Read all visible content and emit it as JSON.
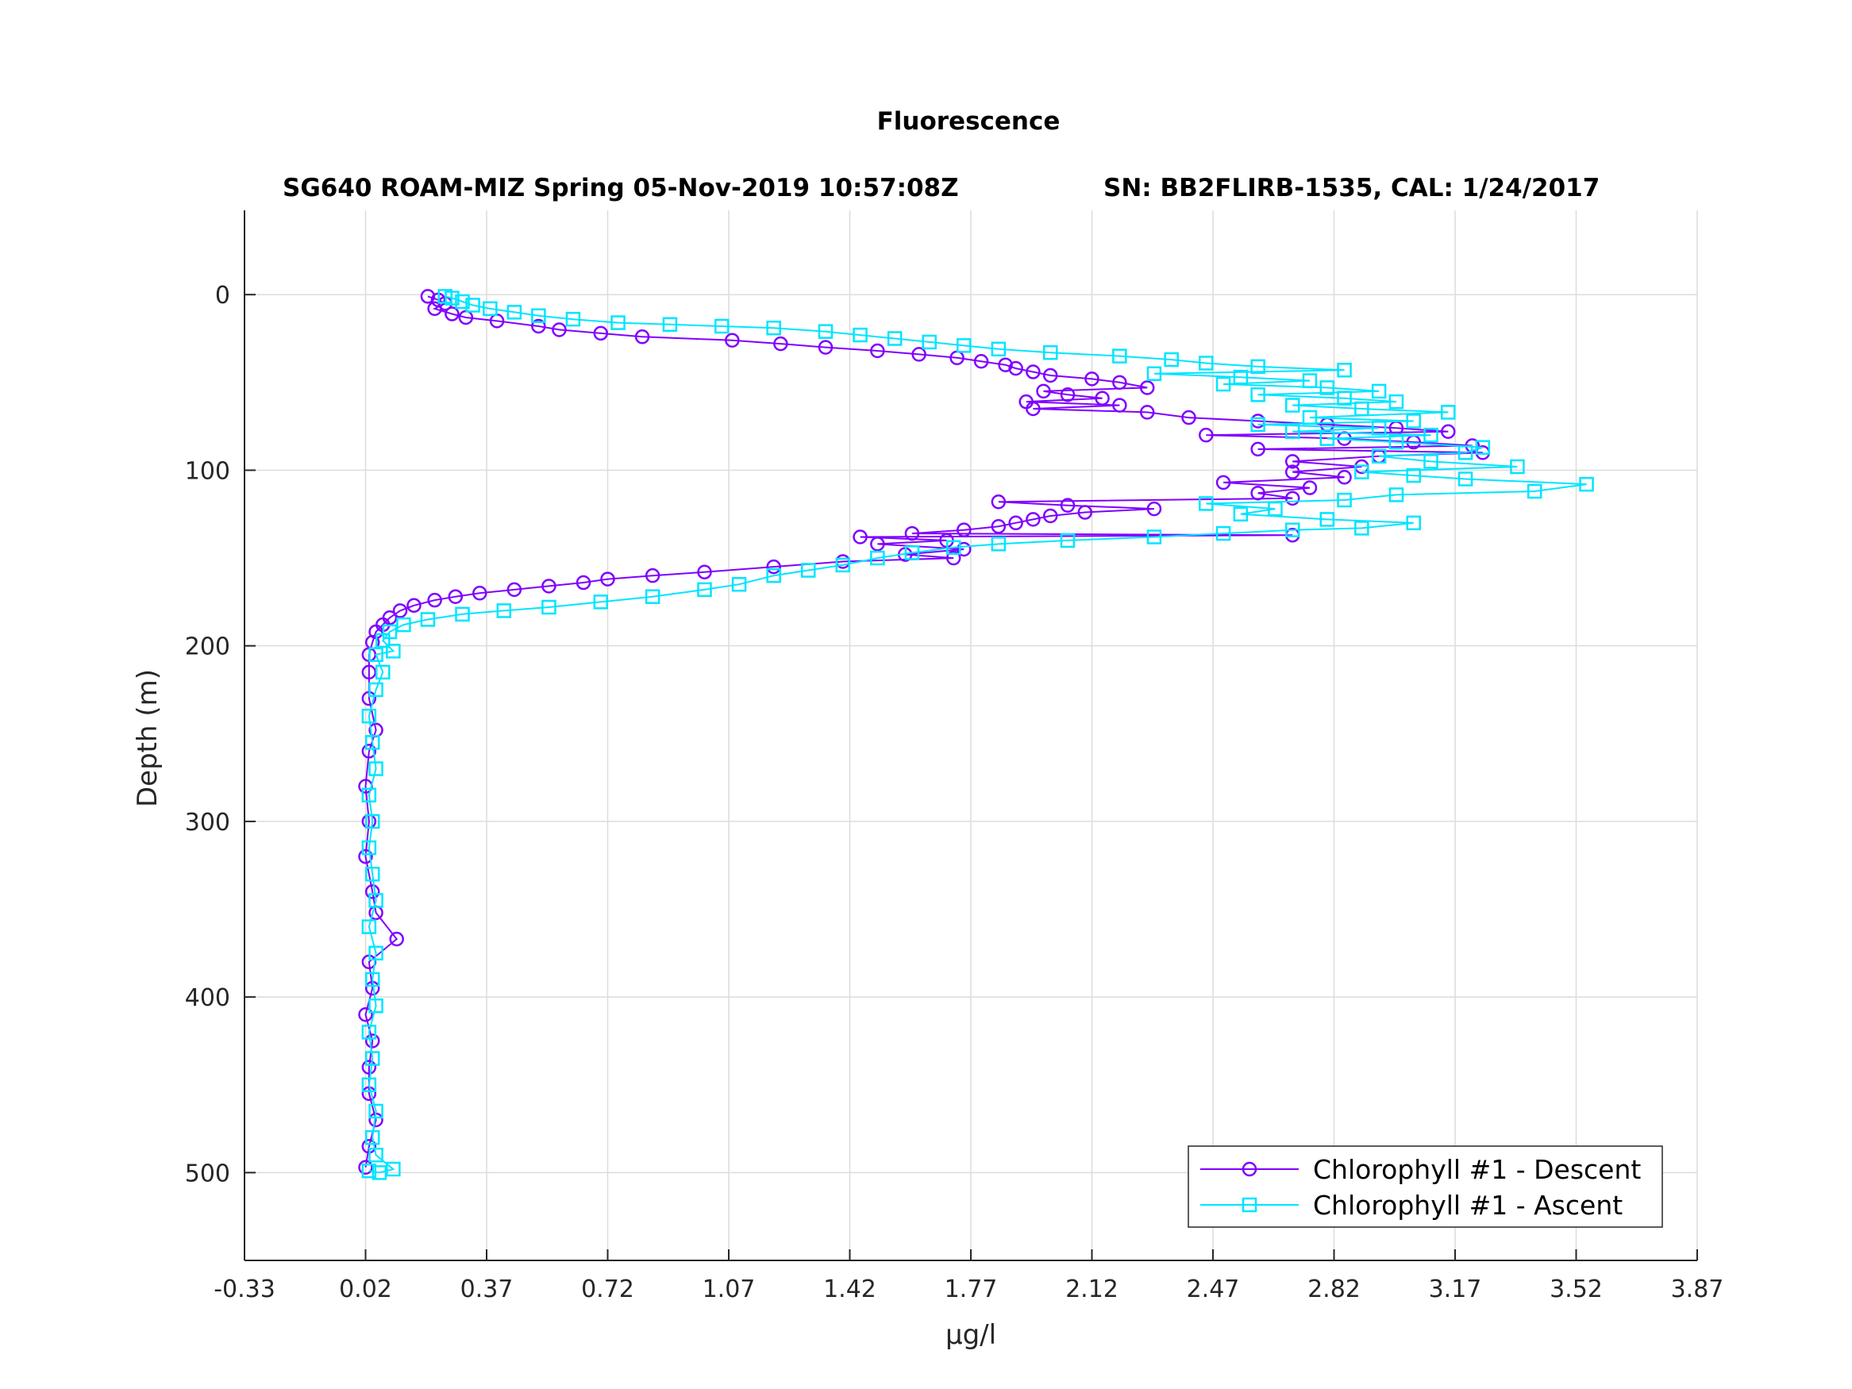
{
  "chart_data": {
    "type": "line",
    "title": "Fluorescence",
    "subtitle_left": "SG640 ROAM-MIZ Spring 05-Nov-2019 10:57:08Z",
    "subtitle_right": "SN: BB2FLIRB-1535, CAL: 1/24/2017",
    "xlabel": "μg/l",
    "ylabel": "Depth (m)",
    "xlim": [
      -0.33,
      3.87
    ],
    "ylim": [
      -48,
      550
    ],
    "y_reversed": true,
    "grid": true,
    "legend_position": "bottom-right",
    "xticks": [
      "-0.33",
      "0.02",
      "0.37",
      "0.72",
      "1.07",
      "1.42",
      "1.77",
      "2.12",
      "2.47",
      "2.82",
      "3.17",
      "3.52",
      "3.87"
    ],
    "yticks": [
      "0",
      "100",
      "200",
      "300",
      "400",
      "500"
    ],
    "series": [
      {
        "name": "Chlorophyll #1 - Descent",
        "color": "#8000ff",
        "marker": "circle",
        "points": [
          [
            0.2,
            1
          ],
          [
            0.23,
            3
          ],
          [
            0.25,
            5
          ],
          [
            0.22,
            8
          ],
          [
            0.27,
            11
          ],
          [
            0.31,
            13
          ],
          [
            0.4,
            15
          ],
          [
            0.52,
            18
          ],
          [
            0.58,
            20
          ],
          [
            0.7,
            22
          ],
          [
            0.82,
            24
          ],
          [
            1.08,
            26
          ],
          [
            1.22,
            28
          ],
          [
            1.35,
            30
          ],
          [
            1.5,
            32
          ],
          [
            1.62,
            34
          ],
          [
            1.73,
            36
          ],
          [
            1.8,
            38
          ],
          [
            1.87,
            40
          ],
          [
            1.9,
            42
          ],
          [
            1.95,
            44
          ],
          [
            2.0,
            46
          ],
          [
            2.12,
            48
          ],
          [
            2.2,
            50
          ],
          [
            2.28,
            53
          ],
          [
            1.98,
            55
          ],
          [
            2.05,
            57
          ],
          [
            2.15,
            59
          ],
          [
            1.93,
            61
          ],
          [
            2.2,
            63
          ],
          [
            1.95,
            65
          ],
          [
            2.28,
            67
          ],
          [
            2.4,
            70
          ],
          [
            2.6,
            72
          ],
          [
            2.8,
            74
          ],
          [
            3.0,
            76
          ],
          [
            3.15,
            78
          ],
          [
            2.45,
            80
          ],
          [
            2.85,
            82
          ],
          [
            3.05,
            84
          ],
          [
            3.22,
            86
          ],
          [
            2.6,
            88
          ],
          [
            3.25,
            90
          ],
          [
            2.95,
            92
          ],
          [
            2.7,
            95
          ],
          [
            2.9,
            98
          ],
          [
            2.7,
            101
          ],
          [
            2.85,
            104
          ],
          [
            2.5,
            107
          ],
          [
            2.75,
            110
          ],
          [
            2.6,
            113
          ],
          [
            2.7,
            116
          ],
          [
            1.85,
            118
          ],
          [
            2.05,
            120
          ],
          [
            2.3,
            122
          ],
          [
            2.1,
            124
          ],
          [
            2.0,
            126
          ],
          [
            1.95,
            128
          ],
          [
            1.9,
            130
          ],
          [
            1.85,
            132
          ],
          [
            1.75,
            134
          ],
          [
            1.6,
            136
          ],
          [
            2.7,
            137
          ],
          [
            1.45,
            138
          ],
          [
            1.7,
            140
          ],
          [
            1.5,
            142
          ],
          [
            1.75,
            145
          ],
          [
            1.58,
            148
          ],
          [
            1.72,
            150
          ],
          [
            1.4,
            152
          ],
          [
            1.2,
            155
          ],
          [
            1.0,
            158
          ],
          [
            0.85,
            160
          ],
          [
            0.72,
            162
          ],
          [
            0.65,
            164
          ],
          [
            0.55,
            166
          ],
          [
            0.45,
            168
          ],
          [
            0.35,
            170
          ],
          [
            0.28,
            172
          ],
          [
            0.22,
            174
          ],
          [
            0.16,
            177
          ],
          [
            0.12,
            180
          ],
          [
            0.09,
            184
          ],
          [
            0.07,
            188
          ],
          [
            0.05,
            192
          ],
          [
            0.04,
            198
          ],
          [
            0.03,
            205
          ],
          [
            0.03,
            215
          ],
          [
            0.03,
            230
          ],
          [
            0.05,
            248
          ],
          [
            0.03,
            260
          ],
          [
            0.02,
            280
          ],
          [
            0.03,
            300
          ],
          [
            0.02,
            320
          ],
          [
            0.04,
            340
          ],
          [
            0.05,
            352
          ],
          [
            0.11,
            367
          ],
          [
            0.03,
            380
          ],
          [
            0.04,
            395
          ],
          [
            0.02,
            410
          ],
          [
            0.04,
            425
          ],
          [
            0.03,
            440
          ],
          [
            0.03,
            455
          ],
          [
            0.05,
            470
          ],
          [
            0.03,
            485
          ],
          [
            0.02,
            497
          ]
        ]
      },
      {
        "name": "Chlorophyll #1 - Ascent",
        "color": "#00e5ff",
        "marker": "square",
        "points": [
          [
            0.03,
            499
          ],
          [
            0.06,
            500
          ],
          [
            0.1,
            498
          ],
          [
            0.05,
            490
          ],
          [
            0.04,
            480
          ],
          [
            0.05,
            465
          ],
          [
            0.03,
            450
          ],
          [
            0.04,
            435
          ],
          [
            0.03,
            420
          ],
          [
            0.05,
            405
          ],
          [
            0.04,
            390
          ],
          [
            0.05,
            375
          ],
          [
            0.03,
            360
          ],
          [
            0.05,
            345
          ],
          [
            0.04,
            330
          ],
          [
            0.03,
            315
          ],
          [
            0.04,
            300
          ],
          [
            0.03,
            285
          ],
          [
            0.05,
            270
          ],
          [
            0.04,
            255
          ],
          [
            0.03,
            240
          ],
          [
            0.05,
            225
          ],
          [
            0.07,
            215
          ],
          [
            0.05,
            205
          ],
          [
            0.1,
            203
          ],
          [
            0.07,
            197
          ],
          [
            0.09,
            192
          ],
          [
            0.13,
            188
          ],
          [
            0.2,
            185
          ],
          [
            0.3,
            182
          ],
          [
            0.42,
            180
          ],
          [
            0.55,
            178
          ],
          [
            0.7,
            175
          ],
          [
            0.85,
            172
          ],
          [
            1.0,
            168
          ],
          [
            1.1,
            165
          ],
          [
            1.2,
            160
          ],
          [
            1.3,
            157
          ],
          [
            1.4,
            154
          ],
          [
            1.5,
            150
          ],
          [
            1.6,
            147
          ],
          [
            1.72,
            144
          ],
          [
            1.85,
            142
          ],
          [
            2.05,
            140
          ],
          [
            2.3,
            138
          ],
          [
            2.5,
            136
          ],
          [
            2.7,
            134
          ],
          [
            2.9,
            133
          ],
          [
            3.05,
            130
          ],
          [
            2.8,
            128
          ],
          [
            2.55,
            125
          ],
          [
            2.65,
            122
          ],
          [
            2.45,
            119
          ],
          [
            2.85,
            117
          ],
          [
            3.0,
            114
          ],
          [
            3.4,
            112
          ],
          [
            3.55,
            108
          ],
          [
            3.2,
            105
          ],
          [
            3.05,
            103
          ],
          [
            2.9,
            101
          ],
          [
            3.35,
            98
          ],
          [
            3.1,
            95
          ],
          [
            2.95,
            92
          ],
          [
            3.2,
            90
          ],
          [
            3.25,
            87
          ],
          [
            3.0,
            84
          ],
          [
            2.8,
            82
          ],
          [
            3.1,
            80
          ],
          [
            2.7,
            78
          ],
          [
            2.95,
            76
          ],
          [
            2.6,
            74
          ],
          [
            3.05,
            72
          ],
          [
            2.75,
            70
          ],
          [
            3.15,
            67
          ],
          [
            2.9,
            65
          ],
          [
            2.7,
            63
          ],
          [
            3.0,
            61
          ],
          [
            2.85,
            59
          ],
          [
            2.6,
            57
          ],
          [
            2.95,
            55
          ],
          [
            2.8,
            53
          ],
          [
            2.5,
            51
          ],
          [
            2.75,
            49
          ],
          [
            2.55,
            47
          ],
          [
            2.3,
            45
          ],
          [
            2.85,
            43
          ],
          [
            2.6,
            41
          ],
          [
            2.45,
            39
          ],
          [
            2.35,
            37
          ],
          [
            2.2,
            35
          ],
          [
            2.0,
            33
          ],
          [
            1.85,
            31
          ],
          [
            1.75,
            29
          ],
          [
            1.65,
            27
          ],
          [
            1.55,
            25
          ],
          [
            1.45,
            23
          ],
          [
            1.35,
            21
          ],
          [
            1.2,
            19
          ],
          [
            1.05,
            18
          ],
          [
            0.9,
            17
          ],
          [
            0.75,
            16
          ],
          [
            0.62,
            14
          ],
          [
            0.52,
            12
          ],
          [
            0.45,
            10
          ],
          [
            0.38,
            8
          ],
          [
            0.33,
            6
          ],
          [
            0.3,
            4
          ],
          [
            0.27,
            2
          ],
          [
            0.25,
            1
          ]
        ]
      }
    ]
  }
}
